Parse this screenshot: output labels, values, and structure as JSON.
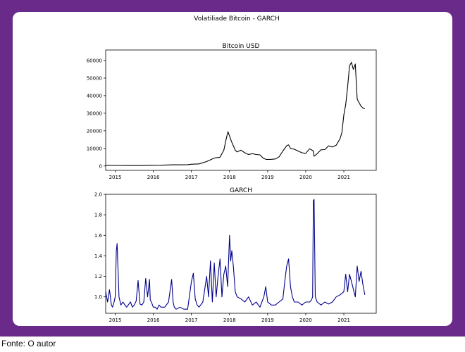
{
  "figure": {
    "suptitle": "Volatiliade Bitcoin - GARCH"
  },
  "caption": "Fonte: O autor",
  "colors": {
    "frame": "#6a2a8a",
    "price_line": "#000000",
    "garch_line": "#00008b"
  },
  "chart_data": [
    {
      "type": "line",
      "title": "Bitcoin USD",
      "xlabel": "",
      "ylabel": "",
      "x_tick_labels": [
        "2015",
        "2016",
        "2017",
        "2018",
        "2019",
        "2020",
        "2021"
      ],
      "y_ticks": [
        0,
        10000,
        20000,
        30000,
        40000,
        50000,
        60000
      ],
      "xlim": [
        2014.75,
        2021.85
      ],
      "ylim": [
        -2500,
        66000
      ],
      "grid": false,
      "series": [
        {
          "x": [
            2014.75,
            2015.0,
            2015.3,
            2015.6,
            2015.9,
            2016.2,
            2016.5,
            2016.7,
            2016.9,
            2017.0,
            2017.2,
            2017.4,
            2017.6,
            2017.75,
            2017.85,
            2017.92,
            2017.96,
            2018.0,
            2018.05,
            2018.1,
            2018.15,
            2018.2,
            2018.3,
            2018.4,
            2018.5,
            2018.6,
            2018.7,
            2018.8,
            2018.88,
            2018.95,
            2019.0,
            2019.1,
            2019.2,
            2019.3,
            2019.4,
            2019.5,
            2019.55,
            2019.6,
            2019.7,
            2019.8,
            2019.9,
            2020.0,
            2020.1,
            2020.2,
            2020.22,
            2020.3,
            2020.4,
            2020.5,
            2020.6,
            2020.7,
            2020.8,
            2020.9,
            2020.95,
            2021.0,
            2021.05,
            2021.1,
            2021.15,
            2021.2,
            2021.25,
            2021.3,
            2021.35,
            2021.4,
            2021.45,
            2021.5,
            2021.55
          ],
          "y": [
            400,
            300,
            250,
            240,
            400,
            420,
            650,
            650,
            750,
            1000,
            1200,
            2500,
            4500,
            5000,
            9000,
            16000,
            19500,
            17000,
            14000,
            11500,
            9000,
            8000,
            9000,
            7500,
            6500,
            7000,
            6500,
            6300,
            4500,
            3800,
            3700,
            3800,
            4000,
            5200,
            8500,
            11500,
            12000,
            10000,
            9500,
            8500,
            7500,
            7200,
            9800,
            8500,
            5500,
            7000,
            9200,
            9300,
            11500,
            10800,
            11800,
            15500,
            19000,
            29000,
            35000,
            45000,
            57000,
            59000,
            55000,
            58000,
            38000,
            36000,
            34000,
            33000,
            32500
          ]
        }
      ]
    },
    {
      "type": "line",
      "title": "GARCH",
      "xlabel": "",
      "ylabel": "",
      "x_tick_labels": [
        "2015",
        "2016",
        "2017",
        "2018",
        "2019",
        "2020",
        "2021"
      ],
      "y_ticks": [
        1.0,
        1.2,
        1.4,
        1.6,
        1.8,
        2.0
      ],
      "xlim": [
        2014.75,
        2021.85
      ],
      "ylim": [
        0.84,
        2.0
      ],
      "grid": false,
      "series": [
        {
          "x": [
            2014.75,
            2014.8,
            2014.85,
            2014.9,
            2014.93,
            2014.97,
            2015.0,
            2015.03,
            2015.05,
            2015.1,
            2015.15,
            2015.2,
            2015.3,
            2015.4,
            2015.45,
            2015.5,
            2015.55,
            2015.6,
            2015.65,
            2015.7,
            2015.75,
            2015.8,
            2015.85,
            2015.9,
            2015.92,
            2015.95,
            2016.0,
            2016.05,
            2016.1,
            2016.15,
            2016.2,
            2016.3,
            2016.4,
            2016.48,
            2016.52,
            2016.55,
            2016.6,
            2016.7,
            2016.8,
            2016.9,
            2017.0,
            2017.05,
            2017.1,
            2017.15,
            2017.2,
            2017.3,
            2017.4,
            2017.45,
            2017.5,
            2017.55,
            2017.6,
            2017.65,
            2017.7,
            2017.75,
            2017.8,
            2017.85,
            2017.9,
            2017.95,
            2018.0,
            2018.03,
            2018.06,
            2018.1,
            2018.15,
            2018.2,
            2018.3,
            2018.4,
            2018.5,
            2018.6,
            2018.7,
            2018.8,
            2018.85,
            2018.9,
            2018.95,
            2019.0,
            2019.1,
            2019.2,
            2019.3,
            2019.4,
            2019.45,
            2019.5,
            2019.55,
            2019.6,
            2019.65,
            2019.7,
            2019.8,
            2019.9,
            2020.0,
            2020.1,
            2020.15,
            2020.18,
            2020.2,
            2020.22,
            2020.25,
            2020.3,
            2020.4,
            2020.5,
            2020.6,
            2020.7,
            2020.8,
            2020.9,
            2021.0,
            2021.05,
            2021.1,
            2021.15,
            2021.2,
            2021.3,
            2021.35,
            2021.4,
            2021.45,
            2021.5,
            2021.55
          ],
          "y": [
            1.05,
            0.95,
            1.07,
            0.92,
            0.9,
            0.95,
            1.0,
            1.45,
            1.52,
            1.0,
            0.92,
            0.95,
            0.9,
            0.95,
            0.9,
            0.92,
            0.96,
            1.16,
            0.93,
            0.92,
            0.95,
            1.18,
            1.0,
            1.17,
            0.97,
            0.95,
            0.9,
            0.9,
            0.88,
            0.92,
            0.9,
            0.9,
            0.95,
            1.17,
            0.95,
            0.9,
            0.88,
            0.9,
            0.88,
            0.88,
            1.15,
            1.23,
            0.98,
            0.92,
            0.9,
            0.95,
            1.2,
            1.0,
            1.35,
            0.95,
            1.33,
            1.0,
            1.2,
            1.37,
            1.0,
            1.22,
            1.3,
            1.1,
            1.6,
            1.35,
            1.45,
            1.3,
            1.05,
            1.0,
            0.98,
            0.95,
            1.0,
            0.92,
            0.95,
            0.9,
            0.95,
            1.0,
            1.1,
            0.95,
            0.92,
            0.92,
            0.95,
            0.98,
            1.15,
            1.3,
            1.37,
            1.1,
            1.0,
            0.95,
            0.95,
            0.92,
            0.95,
            0.95,
            0.97,
            1.0,
            1.94,
            1.95,
            1.0,
            0.95,
            0.92,
            0.95,
            0.93,
            0.95,
            1.0,
            1.02,
            1.05,
            1.22,
            1.05,
            1.22,
            1.15,
            1.0,
            1.3,
            1.15,
            1.25,
            1.12,
            1.02
          ]
        }
      ]
    }
  ]
}
